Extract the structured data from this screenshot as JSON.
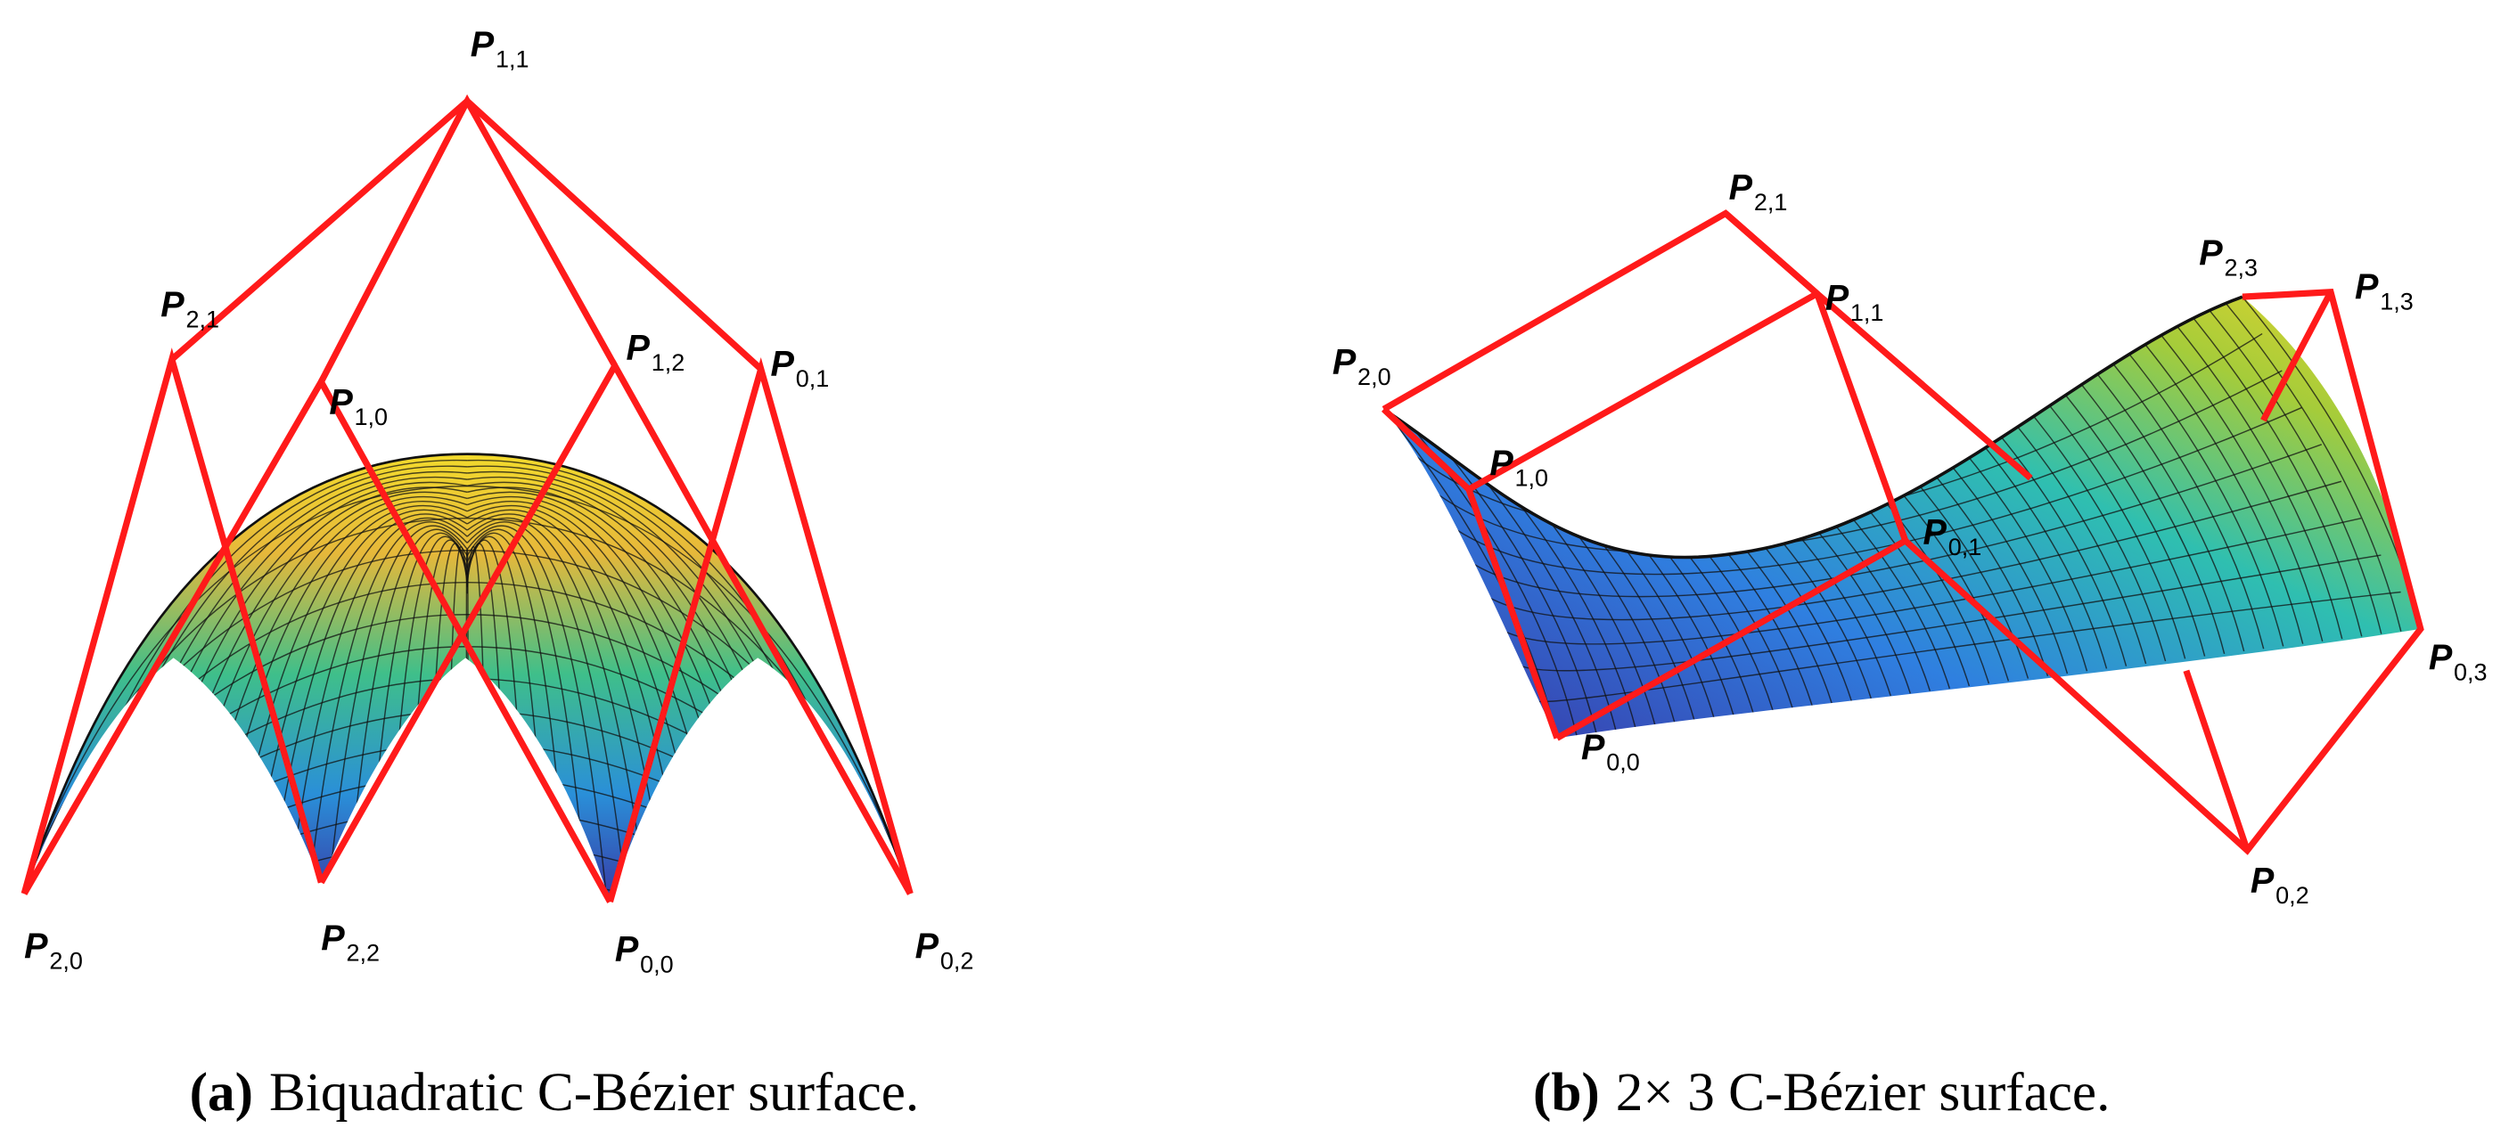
{
  "panels": [
    {
      "caption_tag": "(a)",
      "caption": "Biquadratic C-Bézier surface.",
      "points": [
        {
          "symbol": "P",
          "index": "1,1"
        },
        {
          "symbol": "P",
          "index": "2,1"
        },
        {
          "symbol": "P",
          "index": "1,0"
        },
        {
          "symbol": "P",
          "index": "1,2"
        },
        {
          "symbol": "P",
          "index": "0,1"
        },
        {
          "symbol": "P",
          "index": "2,0"
        },
        {
          "symbol": "P",
          "index": "2,2"
        },
        {
          "symbol": "P",
          "index": "0,0"
        },
        {
          "symbol": "P",
          "index": "0,2"
        }
      ]
    },
    {
      "caption_tag": "(b)",
      "caption": "2× 3 C-Bézier surface.",
      "points": [
        {
          "symbol": "P",
          "index": "2,1"
        },
        {
          "symbol": "P",
          "index": "1,1"
        },
        {
          "symbol": "P",
          "index": "2,3"
        },
        {
          "symbol": "P",
          "index": "1,3"
        },
        {
          "symbol": "P",
          "index": "2,0"
        },
        {
          "symbol": "P",
          "index": "1,0"
        },
        {
          "symbol": "P",
          "index": "0,1"
        },
        {
          "symbol": "P",
          "index": "0,3"
        },
        {
          "symbol": "P",
          "index": "0,0"
        },
        {
          "symbol": "P",
          "index": "0,2"
        }
      ]
    }
  ]
}
